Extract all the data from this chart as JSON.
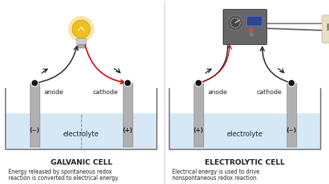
{
  "bg_color": "#ffffff",
  "cell_bg": "#d6e8f5",
  "electrode_color": "#b0b0b0",
  "tank_outline": "#888888",
  "text_color": "#222222",
  "arrow_color": "#111111",
  "red_wire": "#cc0000",
  "black_wire": "#333333",
  "galvanic_title": "GALVANIC CELL",
  "electrolytic_title": "ELECTROLYTIC CELL",
  "galvanic_desc1": "Energy released by spontaneous redox",
  "galvanic_desc2": "reaction is converted to electrical energy.",
  "electrolytic_desc1": "Electrical energy is used to drive",
  "electrolytic_desc2": "nonspontaneous redox reaction.",
  "label_anode": "anode",
  "label_cathode": "cathode",
  "label_electrolyte": "electrolyte",
  "galvanic_anode_sign": "(−)",
  "galvanic_cathode_sign": "(+)",
  "electrolytic_anode_sign": "(+)",
  "electrolytic_cathode_sign": "(−)",
  "divider_color": "#cccccc",
  "dashed_color": "#6699cc",
  "node_color": "#111111",
  "node_edge": "#ffffff",
  "ps_color": "#666666",
  "ps_edge": "#444444",
  "outlet_color": "#e8dfc0",
  "outlet_edge": "#ccbbaa",
  "bulb_glow": "#f5d060",
  "bulb_body": "#f0c020",
  "bulb_base": "#cccccc"
}
